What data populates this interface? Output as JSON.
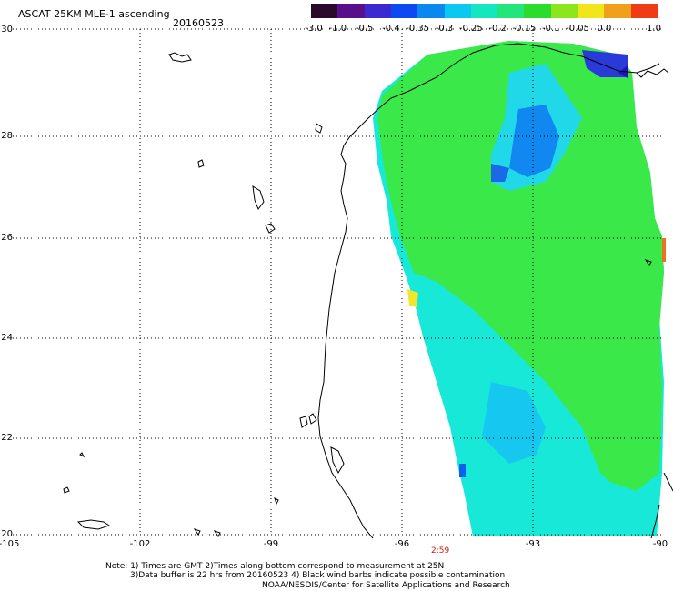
{
  "header": {
    "title": "ASCAT 25KM MLE-1 ascending",
    "date": "20160523"
  },
  "colorbar": {
    "colors": [
      "#2a0a2a",
      "#5a0f8a",
      "#3a2ad0",
      "#0a4af0",
      "#0a88f0",
      "#0ac8f0",
      "#14e6c0",
      "#22e67a",
      "#2cdc2c",
      "#8ce61e",
      "#f0e61a",
      "#f0a01a",
      "#f03c14"
    ],
    "labels": [
      "-3.0",
      "-1.0",
      "-0.5",
      "-0.4",
      "-0.35",
      "-0.3",
      "-0.25",
      "-0.2",
      "-0.15",
      "-0.1",
      "-0.05",
      "0.0",
      "1.0"
    ]
  },
  "axes": {
    "lat_labels": [
      "30",
      "28",
      "26",
      "24",
      "22",
      "20"
    ],
    "lon_labels": [
      "-105",
      "-102",
      "-99",
      "-96",
      "-93",
      "-90"
    ]
  },
  "map": {
    "swath_time": "2:59"
  },
  "notes": {
    "line1": "Note: 1) Times are GMT 2)Times along bottom correspond to measurement at 25N",
    "line2": "3)Data buffer is 22 hrs from 20160523 4) Black wind barbs indicate possible contamination",
    "line3": "NOAA/NESDIS/Center for Satellite Applications and Research"
  }
}
